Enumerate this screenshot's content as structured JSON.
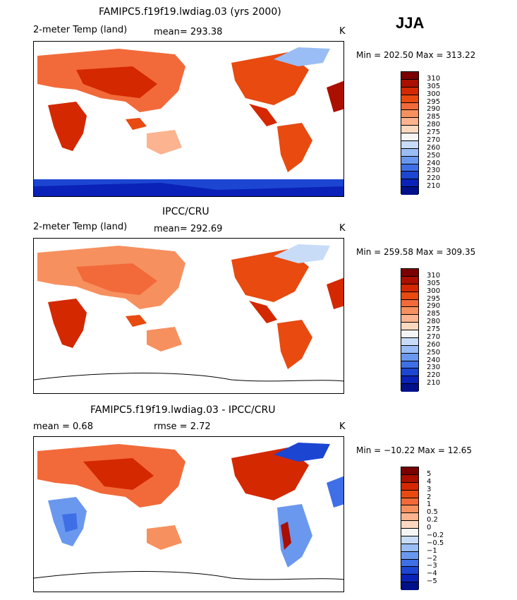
{
  "season": "JJA",
  "panels": [
    {
      "title": "FAMIPC5.f19f19.lwdiag.03 (yrs 2000)",
      "variable": "2-meter Temp (land)",
      "stat1": "mean=  293.38",
      "stat2": "",
      "units": "K",
      "minmax": "Min = 202.50  Max = 313.22",
      "ticks": [
        "310",
        "305",
        "300",
        "295",
        "290",
        "285",
        "280",
        "275",
        "270",
        "260",
        "250",
        "240",
        "230",
        "220",
        "210"
      ]
    },
    {
      "title": "IPCC/CRU",
      "variable": "2-meter Temp (land)",
      "stat1": "mean=  292.69",
      "stat2": "",
      "units": "K",
      "minmax": "Min = 259.58  Max = 309.35",
      "ticks": [
        "310",
        "305",
        "300",
        "295",
        "290",
        "285",
        "280",
        "275",
        "270",
        "260",
        "250",
        "240",
        "230",
        "220",
        "210"
      ]
    },
    {
      "title": "FAMIPC5.f19f19.lwdiag.03 - IPCC/CRU",
      "variable": "mean =    0.68",
      "stat1": "",
      "stat2": "rmse =    2.72",
      "units": "K",
      "minmax": "Min = −10.22  Max =   12.65",
      "ticks": [
        "5",
        "4",
        "3",
        "2",
        "1",
        "0.5",
        "0.2",
        "0",
        "−0.2",
        "−0.5",
        "−1",
        "−2",
        "−3",
        "−4",
        "−5"
      ]
    }
  ],
  "colors": {
    "scale": [
      "#7a0000",
      "#aa0f00",
      "#d42800",
      "#e84a10",
      "#f26a3a",
      "#f7905f",
      "#fbb48f",
      "#fdd8c0",
      "#f5f5f5",
      "#c8dcf8",
      "#9abdf5",
      "#6a98ef",
      "#3e6fe6",
      "#1c45d2",
      "#0a22b8",
      "#00108a"
    ],
    "antarctic": "#1c45d2"
  }
}
